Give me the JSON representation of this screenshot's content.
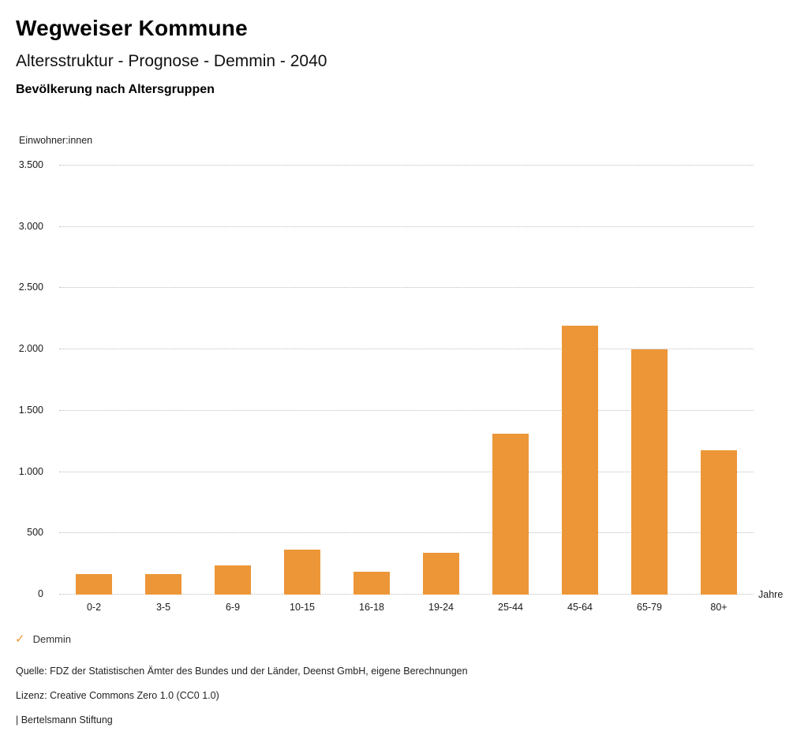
{
  "header": {
    "title": "Wegweiser Kommune",
    "subtitle": "Altersstruktur - Prognose - Demmin - 2040",
    "chart_heading": "Bevölkerung nach Altersgruppen"
  },
  "chart_data": {
    "type": "bar",
    "title": "Bevölkerung nach Altersgruppen",
    "series_name": "Demmin",
    "categories": [
      "0-2",
      "3-5",
      "6-9",
      "10-15",
      "16-18",
      "19-24",
      "25-44",
      "45-64",
      "65-79",
      "80+"
    ],
    "values": [
      170,
      170,
      240,
      370,
      185,
      340,
      1310,
      2195,
      2000,
      1175
    ],
    "xlabel": "Jahre",
    "ylabel": "Einwohner:innen",
    "ylim": [
      0,
      3500
    ],
    "ytick_step": 500,
    "ytick_labels": [
      "0",
      "500",
      "1.000",
      "1.500",
      "2.000",
      "2.500",
      "3.000",
      "3.500"
    ],
    "grid": "horizontal-dotted",
    "legend_position": "bottom-left",
    "bar_color": "#EC9638"
  },
  "legend": {
    "check_icon": "✓",
    "label": "Demmin"
  },
  "footer": {
    "source": "Quelle: FDZ der Statistischen Ämter des Bundes und der Länder, Deenst GmbH, eigene Berechnungen",
    "license": "Lizenz: Creative Commons Zero 1.0 (CC0 1.0)",
    "brand": "| Bertelsmann Stiftung"
  },
  "colors": {
    "accent": "#EC9638",
    "grid": "#BDBDBD",
    "text": "#1A1A1A",
    "background": "#FFFFFF"
  }
}
